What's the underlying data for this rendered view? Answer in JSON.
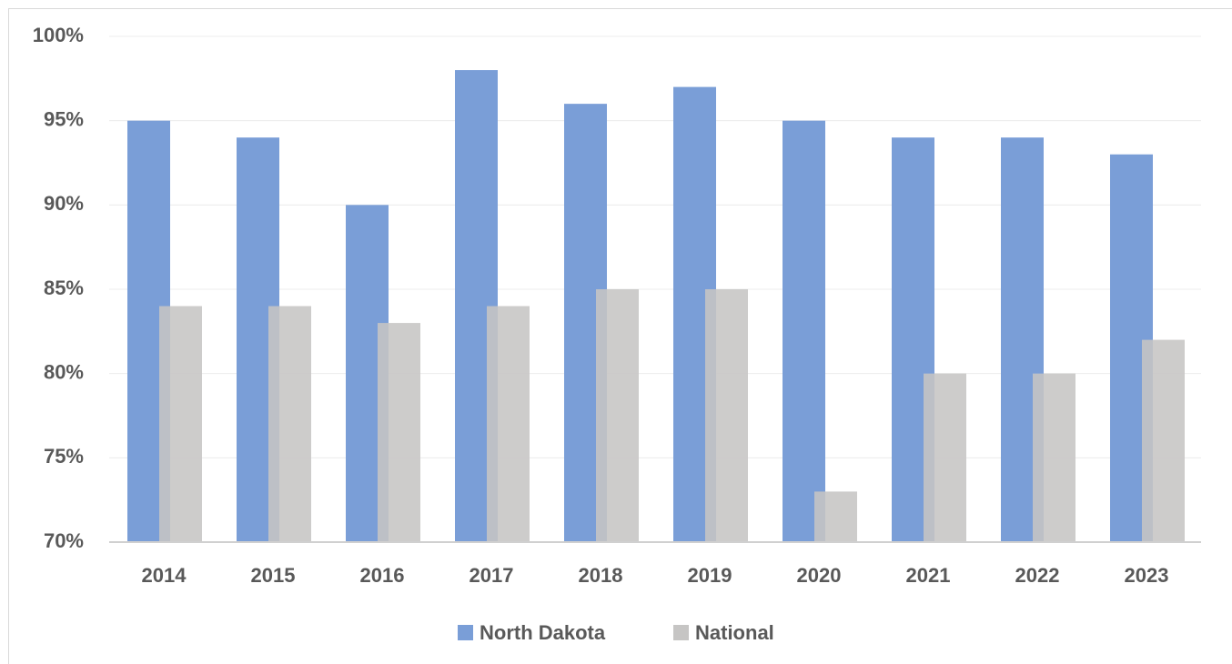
{
  "chart_data": {
    "type": "bar",
    "categories": [
      "2014",
      "2015",
      "2016",
      "2017",
      "2018",
      "2019",
      "2020",
      "2021",
      "2022",
      "2023"
    ],
    "series": [
      {
        "name": "North Dakota",
        "color": "#7a9ed7",
        "values": [
          95,
          94,
          90,
          98,
          96,
          97,
          95,
          94,
          94,
          93
        ]
      },
      {
        "name": "National",
        "color": "#c6c5c4",
        "values": [
          84,
          84,
          83,
          84,
          85,
          85,
          73,
          80,
          80,
          82
        ]
      }
    ],
    "ylim": [
      70,
      100
    ],
    "yticks": [
      {
        "value": 70,
        "label": "70%"
      },
      {
        "value": 75,
        "label": "75%"
      },
      {
        "value": 80,
        "label": "80%"
      },
      {
        "value": 85,
        "label": "85%"
      },
      {
        "value": 90,
        "label": "90%"
      },
      {
        "value": 95,
        "label": "95%"
      },
      {
        "value": 100,
        "label": "100%"
      }
    ],
    "grid": true,
    "legend": "bottom"
  }
}
